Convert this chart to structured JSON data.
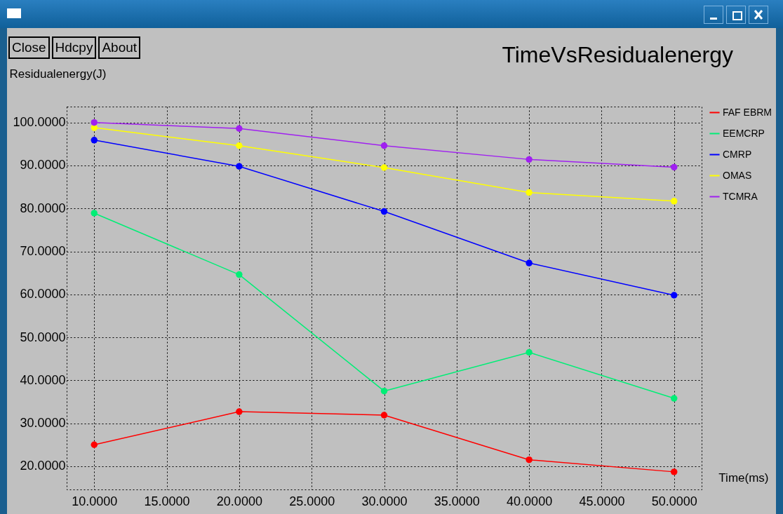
{
  "chart_data": {
    "type": "line",
    "title": "TimeVsResidualenergy",
    "xlabel": "Time(ms)",
    "ylabel": "Residualenergy(J)",
    "annotations": [
      "Close",
      "Hdcpy",
      "About"
    ],
    "x": [
      10,
      20,
      30,
      40,
      50
    ],
    "xlim": [
      8.1,
      51.9
    ],
    "xticks": [
      {
        "value": 10,
        "label": "10.0000"
      },
      {
        "value": 15,
        "label": "15.0000"
      },
      {
        "value": 20,
        "label": "20.0000"
      },
      {
        "value": 25,
        "label": "25.0000"
      },
      {
        "value": 30,
        "label": "30.0000"
      },
      {
        "value": 35,
        "label": "35.0000"
      },
      {
        "value": 40,
        "label": "40.0000"
      },
      {
        "value": 45,
        "label": "45.0000"
      },
      {
        "value": 50,
        "label": "50.0000"
      }
    ],
    "ylim": [
      14.6,
      103.7
    ],
    "yticks": [
      {
        "value": 20,
        "label": "20.0000"
      },
      {
        "value": 30,
        "label": "30.0000"
      },
      {
        "value": 40,
        "label": "40.0000"
      },
      {
        "value": 50,
        "label": "50.0000"
      },
      {
        "value": 60,
        "label": "60.0000"
      },
      {
        "value": 70,
        "label": "70.0000"
      },
      {
        "value": 80,
        "label": "80.0000"
      },
      {
        "value": 90,
        "label": "90.0000"
      },
      {
        "value": 100,
        "label": "100.0000"
      }
    ],
    "grid": true,
    "legend": "right",
    "marker": "circle",
    "line_style": "solid",
    "series": [
      {
        "name": "FAF EBRM",
        "color": "#ff0000",
        "values": [
          25.0,
          32.7,
          31.9,
          21.5,
          18.7
        ]
      },
      {
        "name": "EEMCRP",
        "color": "#00ee76",
        "values": [
          78.9,
          64.6,
          37.5,
          46.5,
          35.8
        ]
      },
      {
        "name": "CMRP",
        "color": "#0000ff",
        "values": [
          95.9,
          89.8,
          79.3,
          67.3,
          59.8
        ]
      },
      {
        "name": "OMAS",
        "color": "#ffff00",
        "values": [
          98.8,
          94.6,
          89.5,
          83.7,
          81.7
        ]
      },
      {
        "name": "TCMRA",
        "color": "#a020f0",
        "values": [
          100.0,
          98.6,
          94.6,
          91.4,
          89.6
        ]
      }
    ]
  }
}
